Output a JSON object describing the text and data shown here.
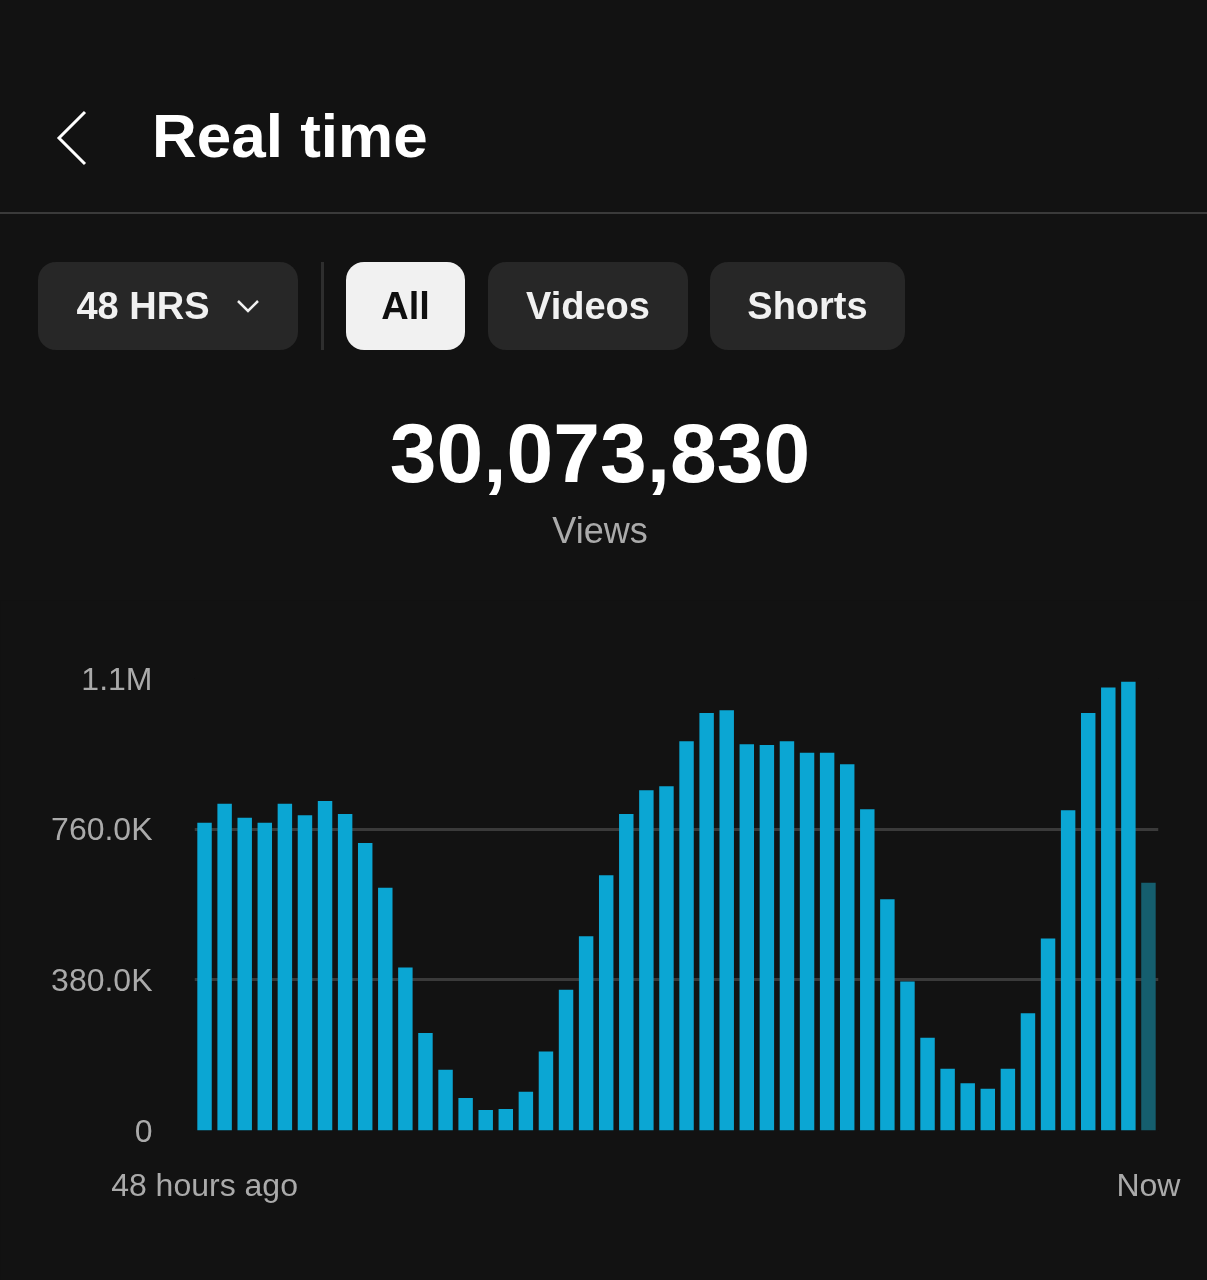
{
  "chart_data": {
    "type": "bar",
    "title": "Real time",
    "annotations": [
      "48 HRS",
      "All",
      "Videos",
      "Shorts",
      "30,073,830",
      "Views"
    ],
    "categories": [
      "48 hours ago",
      null,
      null,
      null,
      null,
      null,
      null,
      null,
      null,
      null,
      null,
      null,
      null,
      null,
      null,
      null,
      null,
      null,
      null,
      null,
      null,
      null,
      null,
      null,
      null,
      null,
      null,
      null,
      null,
      null,
      null,
      null,
      null,
      null,
      null,
      null,
      null,
      null,
      null,
      null,
      null,
      null,
      null,
      null,
      null,
      null,
      null,
      "Now"
    ],
    "values": [
      776000,
      824000,
      789000,
      776000,
      824000,
      795000,
      831000,
      798000,
      725000,
      612000,
      411000,
      246000,
      153000,
      82000,
      52000,
      54000,
      98000,
      199000,
      355000,
      490000,
      644000,
      798000,
      858000,
      868000,
      982000,
      1053000,
      1060000,
      974000,
      972000,
      982000,
      953000,
      953000,
      924000,
      810000,
      583000,
      376000,
      234000,
      156000,
      119000,
      105000,
      156000,
      296000,
      484000,
      808000,
      1053000,
      1117000,
      1132000,
      625000
    ],
    "colors": [
      "#0ba6d3",
      "#0ba6d3",
      "#0ba6d3",
      "#0ba6d3",
      "#0ba6d3",
      "#0ba6d3",
      "#0ba6d3",
      "#0ba6d3",
      "#0ba6d3",
      "#0ba6d3",
      "#0ba6d3",
      "#0ba6d3",
      "#0ba6d3",
      "#0ba6d3",
      "#0ba6d3",
      "#0ba6d3",
      "#0ba6d3",
      "#0ba6d3",
      "#0ba6d3",
      "#0ba6d3",
      "#0ba6d3",
      "#0ba6d3",
      "#0ba6d3",
      "#0ba6d3",
      "#0ba6d3",
      "#0ba6d3",
      "#0ba6d3",
      "#0ba6d3",
      "#0ba6d3",
      "#0ba6d3",
      "#0ba6d3",
      "#0ba6d3",
      "#0ba6d3",
      "#0ba6d3",
      "#0ba6d3",
      "#0ba6d3",
      "#0ba6d3",
      "#0ba6d3",
      "#0ba6d3",
      "#0ba6d3",
      "#0ba6d3",
      "#0ba6d3",
      "#0ba6d3",
      "#0ba6d3",
      "#0ba6d3",
      "#0ba6d3",
      "#0ba6d3",
      "#155e6e"
    ],
    "ylim": [
      0,
      1140000
    ],
    "yticks": [
      0,
      {
        "value": 380000,
        "label": "380.0K"
      },
      {
        "value": 760000,
        "label": "760.0K"
      },
      {
        "value": 1140000,
        "label": "1.1M"
      }
    ],
    "grid": "y"
  }
}
